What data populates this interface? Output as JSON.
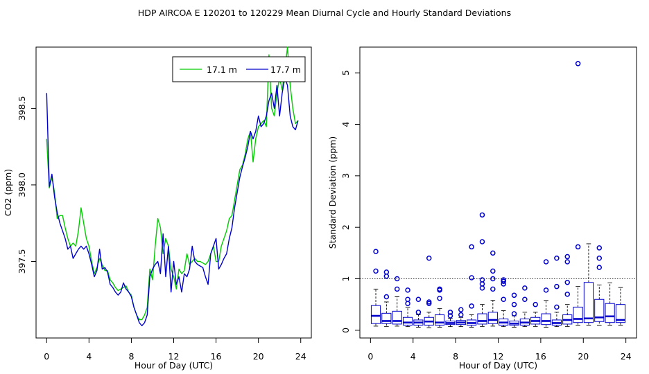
{
  "figure": {
    "title": "HDP   AIRCOA E   120201 to 120229   Mean Diurnal Cycle and Hourly Standard Deviations"
  },
  "colors": {
    "green": "#00cc00",
    "blue": "#0000cc",
    "black": "#000000"
  },
  "chart_data": [
    {
      "type": "line",
      "title": "",
      "xlabel": "Hour of Day (UTC)",
      "ylabel": "CO2 (ppm)",
      "xlim": [
        -1,
        25
      ],
      "ylim": [
        397.0,
        398.9
      ],
      "x_ticks": [
        0,
        4,
        8,
        12,
        16,
        20,
        24
      ],
      "x_tick_labels": [
        "0",
        "4",
        "8",
        "12",
        "16",
        "20",
        "24"
      ],
      "y_ticks": [
        397.5,
        398.0,
        398.5
      ],
      "y_tick_labels": [
        "397.5",
        "398.0",
        "398.5"
      ],
      "legend": {
        "position": "top-right"
      },
      "series": [
        {
          "name": "17.1 m",
          "color": "#00cc00",
          "x": [
            0,
            0.25,
            0.5,
            0.75,
            1,
            1.25,
            1.5,
            1.75,
            2,
            2.25,
            2.5,
            2.75,
            3,
            3.25,
            3.5,
            3.75,
            4,
            4.25,
            4.5,
            4.75,
            5,
            5.25,
            5.5,
            5.75,
            6,
            6.25,
            6.5,
            6.75,
            7,
            7.25,
            7.5,
            7.75,
            8,
            8.25,
            8.5,
            8.75,
            9,
            9.25,
            9.5,
            9.75,
            10,
            10.25,
            10.5,
            10.75,
            11,
            11.25,
            11.5,
            11.75,
            12,
            12.25,
            12.5,
            12.75,
            13,
            13.25,
            13.5,
            13.75,
            14,
            14.25,
            14.5,
            14.75,
            15,
            15.25,
            15.5,
            15.75,
            16,
            16.25,
            16.5,
            16.75,
            17,
            17.25,
            17.5,
            17.75,
            18,
            18.25,
            18.5,
            18.75,
            19,
            19.25,
            19.5,
            19.75,
            20,
            20.25,
            20.5,
            20.75,
            21,
            21.25,
            21.5,
            21.75,
            22,
            22.25,
            22.5,
            22.75,
            23,
            23.25,
            23.5,
            23.75
          ],
          "values": [
            398.3,
            397.98,
            398.05,
            397.95,
            397.78,
            397.8,
            397.8,
            397.72,
            397.65,
            397.6,
            397.62,
            397.6,
            397.7,
            397.85,
            397.75,
            397.65,
            397.6,
            397.5,
            397.42,
            397.46,
            397.52,
            397.48,
            397.44,
            397.44,
            397.38,
            397.36,
            397.33,
            397.31,
            397.32,
            397.33,
            397.34,
            397.3,
            397.28,
            397.2,
            397.15,
            397.12,
            397.12,
            397.15,
            397.2,
            397.45,
            397.38,
            397.6,
            397.78,
            397.72,
            397.55,
            397.65,
            397.6,
            397.45,
            397.4,
            397.32,
            397.45,
            397.42,
            397.44,
            397.55,
            397.48,
            397.5,
            397.52,
            397.5,
            397.5,
            397.49,
            397.48,
            397.5,
            397.55,
            397.6,
            397.5,
            397.5,
            397.6,
            397.65,
            397.7,
            397.78,
            397.8,
            397.9,
            398.0,
            398.1,
            398.13,
            398.2,
            398.3,
            398.35,
            398.15,
            398.3,
            398.38,
            398.4,
            398.42,
            398.38,
            398.85,
            398.5,
            398.45,
            398.6,
            398.7,
            398.62,
            398.75,
            398.9,
            398.65,
            398.5,
            398.4,
            398.42
          ],
          "note": "approximate, digitized from plot"
        },
        {
          "name": "17.7 m",
          "color": "#0000cc",
          "x": [
            0,
            0.25,
            0.5,
            0.75,
            1,
            1.25,
            1.5,
            1.75,
            2,
            2.25,
            2.5,
            2.75,
            3,
            3.25,
            3.5,
            3.75,
            4,
            4.25,
            4.5,
            4.75,
            5,
            5.25,
            5.5,
            5.75,
            6,
            6.25,
            6.5,
            6.75,
            7,
            7.25,
            7.5,
            7.75,
            8,
            8.25,
            8.5,
            8.75,
            9,
            9.25,
            9.5,
            9.75,
            10,
            10.25,
            10.5,
            10.75,
            11,
            11.25,
            11.5,
            11.75,
            12,
            12.25,
            12.5,
            12.75,
            13,
            13.25,
            13.5,
            13.75,
            14,
            14.25,
            14.5,
            14.75,
            15,
            15.25,
            15.5,
            15.75,
            16,
            16.25,
            16.5,
            16.75,
            17,
            17.25,
            17.5,
            17.75,
            18,
            18.25,
            18.5,
            18.75,
            19,
            19.25,
            19.5,
            19.75,
            20,
            20.25,
            20.5,
            20.75,
            21,
            21.25,
            21.5,
            21.75,
            22,
            22.25,
            22.5,
            22.75,
            23,
            23.25,
            23.5,
            23.75
          ],
          "values": [
            398.6,
            397.99,
            398.07,
            397.92,
            397.82,
            397.75,
            397.7,
            397.65,
            397.58,
            397.6,
            397.52,
            397.55,
            397.58,
            397.6,
            397.58,
            397.6,
            397.55,
            397.48,
            397.4,
            397.44,
            397.58,
            397.45,
            397.46,
            397.43,
            397.35,
            397.33,
            397.3,
            397.28,
            397.3,
            397.36,
            397.32,
            397.3,
            397.27,
            397.2,
            397.15,
            397.1,
            397.08,
            397.1,
            397.15,
            397.4,
            397.45,
            397.48,
            397.5,
            397.42,
            397.68,
            397.4,
            397.6,
            397.3,
            397.5,
            397.35,
            397.4,
            397.3,
            397.42,
            397.4,
            397.45,
            397.6,
            397.5,
            397.48,
            397.47,
            397.46,
            397.4,
            397.35,
            397.55,
            397.6,
            397.65,
            397.45,
            397.48,
            397.52,
            397.55,
            397.65,
            397.72,
            397.85,
            397.95,
            398.05,
            398.12,
            398.18,
            398.25,
            398.35,
            398.3,
            398.35,
            398.45,
            398.38,
            398.4,
            398.45,
            398.55,
            398.6,
            398.5,
            398.65,
            398.45,
            398.6,
            398.7,
            398.65,
            398.45,
            398.38,
            398.36,
            398.42
          ],
          "note": "approximate, digitized from plot"
        }
      ]
    },
    {
      "type": "box",
      "title": "",
      "xlabel": "Hour of Day (UTC)",
      "ylabel": "Standard Deviation (ppm)",
      "xlim": [
        -1,
        25
      ],
      "ylim": [
        -0.15,
        5.5
      ],
      "x_ticks": [
        0,
        4,
        8,
        12,
        16,
        20,
        24
      ],
      "x_tick_labels": [
        "0",
        "4",
        "8",
        "12",
        "16",
        "20",
        "24"
      ],
      "y_ticks": [
        0,
        1,
        2,
        3,
        4,
        5
      ],
      "y_tick_labels": [
        "0",
        "1",
        "2",
        "3",
        "4",
        "5"
      ],
      "reference_line": 1.0,
      "boxes": [
        {
          "hour": 0.5,
          "lowWhisker": 0.08,
          "q1": 0.13,
          "median": 0.28,
          "q3": 0.48,
          "highWhisker": 0.8,
          "outliers": [
            1.15,
            1.53
          ]
        },
        {
          "hour": 1.5,
          "lowWhisker": 0.07,
          "q1": 0.13,
          "median": 0.18,
          "q3": 0.33,
          "highWhisker": 0.55,
          "outliers": [
            0.65,
            1.05,
            1.13
          ]
        },
        {
          "hour": 2.5,
          "lowWhisker": 0.08,
          "q1": 0.12,
          "median": 0.18,
          "q3": 0.37,
          "highWhisker": 0.65,
          "outliers": [
            0.8,
            1.0
          ]
        },
        {
          "hour": 3.5,
          "lowWhisker": 0.07,
          "q1": 0.1,
          "median": 0.15,
          "q3": 0.25,
          "highWhisker": 0.45,
          "outliers": [
            0.52,
            0.6,
            0.78
          ]
        },
        {
          "hour": 4.5,
          "lowWhisker": 0.06,
          "q1": 0.1,
          "median": 0.15,
          "q3": 0.2,
          "highWhisker": 0.3,
          "outliers": [
            0.35,
            0.6
          ]
        },
        {
          "hour": 5.5,
          "lowWhisker": 0.05,
          "q1": 0.1,
          "median": 0.17,
          "q3": 0.25,
          "highWhisker": 0.35,
          "outliers": [
            0.52,
            0.55,
            1.4
          ]
        },
        {
          "hour": 6.5,
          "lowWhisker": 0.06,
          "q1": 0.1,
          "median": 0.15,
          "q3": 0.3,
          "highWhisker": 0.42,
          "outliers": [
            0.62,
            0.78,
            0.8
          ]
        },
        {
          "hour": 7.5,
          "lowWhisker": 0.07,
          "q1": 0.11,
          "median": 0.14,
          "q3": 0.18,
          "highWhisker": 0.23,
          "outliers": [
            0.28,
            0.35
          ]
        },
        {
          "hour": 8.5,
          "lowWhisker": 0.07,
          "q1": 0.11,
          "median": 0.15,
          "q3": 0.19,
          "highWhisker": 0.25,
          "outliers": [
            0.3,
            0.4
          ]
        },
        {
          "hour": 9.5,
          "lowWhisker": 0.06,
          "q1": 0.1,
          "median": 0.14,
          "q3": 0.2,
          "highWhisker": 0.3,
          "outliers": [
            0.47,
            1.02,
            1.62
          ]
        },
        {
          "hour": 10.5,
          "lowWhisker": 0.07,
          "q1": 0.12,
          "median": 0.18,
          "q3": 0.32,
          "highWhisker": 0.5,
          "outliers": [
            0.82,
            0.9,
            0.98,
            1.72,
            2.24
          ]
        },
        {
          "hour": 11.5,
          "lowWhisker": 0.08,
          "q1": 0.13,
          "median": 0.2,
          "q3": 0.35,
          "highWhisker": 0.58,
          "outliers": [
            0.8,
            1.0,
            1.15,
            1.5
          ]
        },
        {
          "hour": 12.5,
          "lowWhisker": 0.07,
          "q1": 0.1,
          "median": 0.15,
          "q3": 0.22,
          "highWhisker": 0.38,
          "outliers": [
            0.6,
            0.9,
            0.95,
            0.98
          ]
        },
        {
          "hour": 13.5,
          "lowWhisker": 0.06,
          "q1": 0.1,
          "median": 0.13,
          "q3": 0.18,
          "highWhisker": 0.28,
          "outliers": [
            0.32,
            0.5,
            0.68
          ]
        },
        {
          "hour": 14.5,
          "lowWhisker": 0.07,
          "q1": 0.1,
          "median": 0.15,
          "q3": 0.22,
          "highWhisker": 0.35,
          "outliers": [
            0.6,
            0.82
          ]
        },
        {
          "hour": 15.5,
          "lowWhisker": 0.07,
          "q1": 0.12,
          "median": 0.18,
          "q3": 0.25,
          "highWhisker": 0.35,
          "outliers": [
            0.5
          ]
        },
        {
          "hour": 16.5,
          "lowWhisker": 0.06,
          "q1": 0.11,
          "median": 0.18,
          "q3": 0.32,
          "highWhisker": 0.58,
          "outliers": [
            0.78,
            1.33
          ]
        },
        {
          "hour": 17.5,
          "lowWhisker": 0.07,
          "q1": 0.1,
          "median": 0.14,
          "q3": 0.2,
          "highWhisker": 0.35,
          "outliers": [
            0.45,
            0.85,
            1.4
          ]
        },
        {
          "hour": 18.5,
          "lowWhisker": 0.07,
          "q1": 0.12,
          "median": 0.2,
          "q3": 0.3,
          "highWhisker": 0.5,
          "outliers": [
            0.7,
            0.93,
            1.33,
            1.43
          ]
        },
        {
          "hour": 19.5,
          "lowWhisker": 0.1,
          "q1": 0.15,
          "median": 0.22,
          "q3": 0.45,
          "highWhisker": 0.85,
          "outliers": [
            1.62,
            5.18
          ]
        },
        {
          "hour": 20.5,
          "lowWhisker": 0.1,
          "q1": 0.15,
          "median": 0.23,
          "q3": 0.93,
          "highWhisker": 1.68,
          "outliers": []
        },
        {
          "hour": 21.5,
          "lowWhisker": 0.1,
          "q1": 0.17,
          "median": 0.25,
          "q3": 0.6,
          "highWhisker": 0.88,
          "outliers": [
            1.22,
            1.4,
            1.6
          ]
        },
        {
          "hour": 22.5,
          "lowWhisker": 0.1,
          "q1": 0.15,
          "median": 0.27,
          "q3": 0.52,
          "highWhisker": 0.92,
          "outliers": []
        },
        {
          "hour": 23.5,
          "lowWhisker": 0.1,
          "q1": 0.15,
          "median": 0.2,
          "q3": 0.5,
          "highWhisker": 0.83,
          "outliers": []
        }
      ]
    }
  ]
}
